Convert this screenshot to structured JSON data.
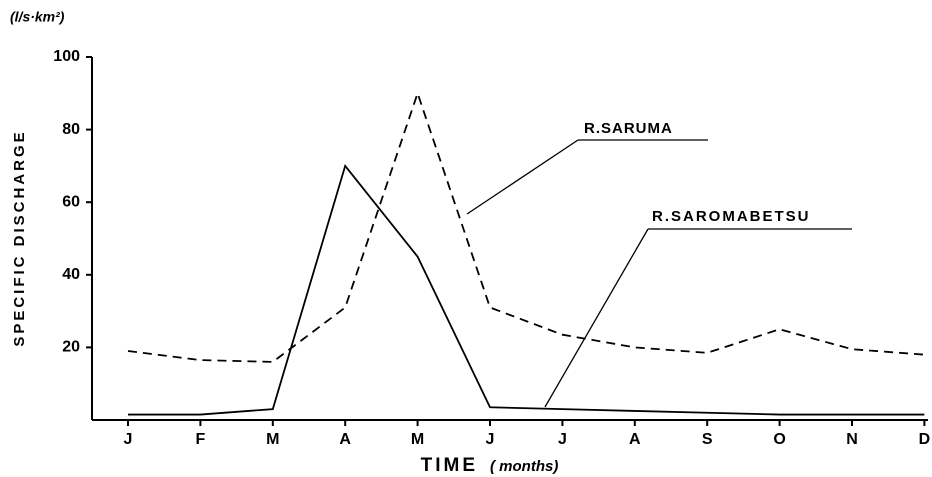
{
  "chart_data": {
    "type": "line",
    "y_unit": "(l/s·km²)",
    "y_label": "SPECIFIC DISCHARGE",
    "x_label": "TIME",
    "x_unit": "( months)",
    "categories": [
      "J",
      "F",
      "M",
      "A",
      "M",
      "J",
      "J",
      "A",
      "S",
      "O",
      "N",
      "D"
    ],
    "series": [
      {
        "name": "R.SARUMA",
        "color": "#000000",
        "style": "dashed",
        "values": [
          19,
          16.5,
          16,
          31,
          90,
          31,
          23.5,
          20,
          18.5,
          25,
          19.5,
          18
        ]
      },
      {
        "name": "R.SAROMABETSU",
        "color": "#000000",
        "style": "solid",
        "values": [
          1.5,
          1.5,
          3,
          70,
          45,
          3.5,
          3,
          2.5,
          2,
          1.5,
          1.5,
          1.5
        ]
      }
    ],
    "ylim": [
      0,
      100
    ],
    "yticks": [
      20,
      40,
      60,
      80,
      100
    ],
    "grid": false
  }
}
